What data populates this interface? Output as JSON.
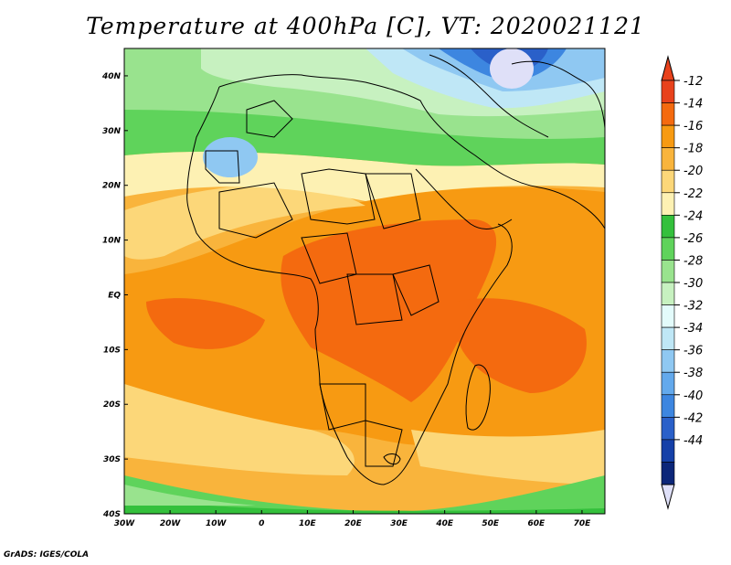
{
  "title": "Temperature at 400hPa [C], VT: 2020021121",
  "footer": "GrADS: IGES/COLA",
  "map": {
    "lon_range": [
      -30,
      75
    ],
    "lat_range": [
      -40,
      45
    ],
    "lon_ticks": [
      "30W",
      "20W",
      "10W",
      "0",
      "10E",
      "20E",
      "30E",
      "40E",
      "50E",
      "60E",
      "70E"
    ],
    "lat_ticks": [
      "40S",
      "30S",
      "20S",
      "10S",
      "EQ",
      "10N",
      "20N",
      "30N",
      "40N"
    ]
  },
  "colorbar": {
    "levels": [
      "-12",
      "-14",
      "-16",
      "-18",
      "-20",
      "-22",
      "-24",
      "-26",
      "-28",
      "-30",
      "-32",
      "-34",
      "-36",
      "-38",
      "-40",
      "-42",
      "-44"
    ],
    "colors": [
      "#e8421c",
      "#f46a0f",
      "#f79a12",
      "#f9b43c",
      "#fcd779",
      "#fdf1b3",
      "#34c03c",
      "#5fd35b",
      "#99e38e",
      "#c7f1c0",
      "#e3fbfb",
      "#bfe7f6",
      "#8fc8f2",
      "#63a9ec",
      "#3d86e0",
      "#2a60c9",
      "#1540a8",
      "#0c2679"
    ],
    "top_arrow_color": "#e8421c",
    "bottom_arrow_color": "#dfe0f8"
  }
}
